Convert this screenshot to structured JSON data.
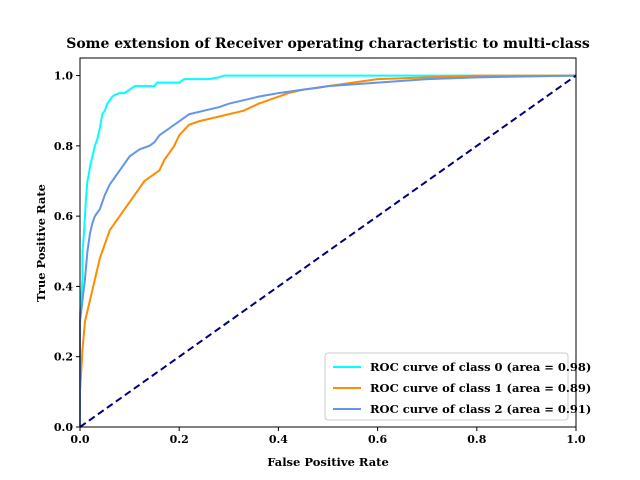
{
  "chart_data": {
    "type": "line",
    "title": "Some extension of Receiver operating characteristic to multi-class",
    "xlabel": "False Positive Rate",
    "ylabel": "True Positive Rate",
    "xlim": [
      0.0,
      1.0
    ],
    "ylim": [
      0.0,
      1.05
    ],
    "x_ticks": [
      "0.0",
      "0.2",
      "0.4",
      "0.6",
      "0.8",
      "1.0"
    ],
    "y_ticks": [
      "0.0",
      "0.2",
      "0.4",
      "0.6",
      "0.8",
      "1.0"
    ],
    "grid": false,
    "legend_position": "lower-right",
    "series": [
      {
        "name": "ROC curve of class 0 (area = 0.98)",
        "color": "#00ffff",
        "x": [
          0.0,
          0.0,
          0.005,
          0.005,
          0.008,
          0.01,
          0.012,
          0.015,
          0.018,
          0.02,
          0.025,
          0.03,
          0.035,
          0.04,
          0.045,
          0.05,
          0.055,
          0.06,
          0.065,
          0.07,
          0.08,
          0.09,
          0.1,
          0.11,
          0.13,
          0.15,
          0.155,
          0.2,
          0.21,
          0.26,
          0.28,
          0.29,
          0.4,
          0.6,
          0.8,
          1.0
        ],
        "y": [
          0.0,
          0.32,
          0.42,
          0.5,
          0.55,
          0.6,
          0.65,
          0.7,
          0.72,
          0.74,
          0.77,
          0.8,
          0.82,
          0.85,
          0.89,
          0.9,
          0.92,
          0.93,
          0.94,
          0.945,
          0.95,
          0.95,
          0.96,
          0.97,
          0.97,
          0.97,
          0.98,
          0.98,
          0.99,
          0.99,
          0.995,
          1.0,
          1.0,
          1.0,
          1.0,
          1.0
        ]
      },
      {
        "name": "ROC curve of class 1 (area = 0.89)",
        "color": "#ff8c00",
        "x": [
          0.0,
          0.0,
          0.005,
          0.01,
          0.015,
          0.02,
          0.025,
          0.03,
          0.035,
          0.04,
          0.05,
          0.06,
          0.07,
          0.08,
          0.09,
          0.1,
          0.11,
          0.12,
          0.13,
          0.14,
          0.15,
          0.16,
          0.17,
          0.18,
          0.19,
          0.2,
          0.22,
          0.24,
          0.27,
          0.3,
          0.33,
          0.36,
          0.4,
          0.42,
          0.45,
          0.48,
          0.5,
          0.55,
          0.6,
          0.7,
          0.8,
          0.9,
          1.0
        ],
        "y": [
          0.0,
          0.1,
          0.22,
          0.3,
          0.33,
          0.36,
          0.39,
          0.42,
          0.45,
          0.48,
          0.52,
          0.56,
          0.58,
          0.6,
          0.62,
          0.64,
          0.66,
          0.68,
          0.7,
          0.71,
          0.72,
          0.73,
          0.76,
          0.78,
          0.8,
          0.83,
          0.86,
          0.87,
          0.88,
          0.89,
          0.9,
          0.92,
          0.94,
          0.95,
          0.96,
          0.965,
          0.97,
          0.98,
          0.99,
          0.995,
          1.0,
          1.0,
          1.0
        ]
      },
      {
        "name": "ROC curve of class 2 (area = 0.91)",
        "color": "#6495ed",
        "x": [
          0.0,
          0.0,
          0.005,
          0.01,
          0.015,
          0.02,
          0.025,
          0.03,
          0.035,
          0.04,
          0.05,
          0.06,
          0.07,
          0.08,
          0.09,
          0.1,
          0.12,
          0.14,
          0.15,
          0.16,
          0.18,
          0.2,
          0.22,
          0.25,
          0.28,
          0.3,
          0.33,
          0.36,
          0.4,
          0.45,
          0.5,
          0.55,
          0.6,
          0.7,
          0.8,
          1.0
        ],
        "y": [
          0.0,
          0.3,
          0.36,
          0.42,
          0.5,
          0.55,
          0.58,
          0.6,
          0.61,
          0.62,
          0.66,
          0.69,
          0.71,
          0.73,
          0.75,
          0.77,
          0.79,
          0.8,
          0.81,
          0.83,
          0.85,
          0.87,
          0.89,
          0.9,
          0.91,
          0.92,
          0.93,
          0.94,
          0.95,
          0.96,
          0.97,
          0.975,
          0.98,
          0.99,
          0.995,
          1.0
        ]
      },
      {
        "name": "",
        "color": "#000080",
        "style": "dashed",
        "x": [
          0.0,
          1.0
        ],
        "y": [
          0.0,
          1.0
        ]
      }
    ]
  }
}
